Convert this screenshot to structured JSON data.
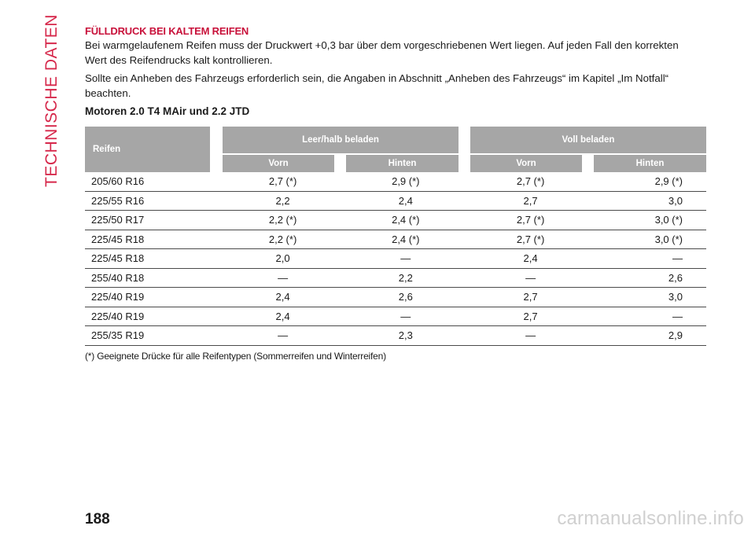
{
  "side_label": "TECHNISCHE DATEN",
  "heading": "FÜLLDRUCK BEI KALTEM REIFEN",
  "paragraph1": "Bei warmgelaufenem Reifen muss der Druckwert +0,3 bar über dem vorgeschriebenen Wert liegen. Auf jeden Fall den korrekten Wert des Reifendrucks kalt kontrollieren.",
  "paragraph2": "Sollte ein Anheben des Fahrzeugs erforderlich sein, die Angaben in Abschnitt „Anheben des Fahrzeugs“ im Kapitel „Im Notfall“ beachten.",
  "subheading": "Motoren 2.0 T4 MAir und 2.2 JTD",
  "table": {
    "col_reifen": "Reifen",
    "group1": "Leer/halb beladen",
    "group2": "Voll beladen",
    "vorn1": "Vorn",
    "hinten1": "Hinten",
    "vorn2": "Vorn",
    "hinten2": "Hinten",
    "rows": [
      [
        "205/60 R16",
        "2,7 (*)",
        "2,9 (*)",
        "2,7 (*)",
        "2,9 (*)"
      ],
      [
        "225/55 R16",
        "2,2",
        "2,4",
        "2,7",
        "3,0"
      ],
      [
        "225/50 R17",
        "2,2 (*)",
        "2,4 (*)",
        "2,7 (*)",
        "3,0 (*)"
      ],
      [
        "225/45 R18",
        "2,2 (*)",
        "2,4 (*)",
        "2,7 (*)",
        "3,0 (*)"
      ],
      [
        "225/45 R18",
        "2,0",
        "—",
        "2,4",
        "—"
      ],
      [
        "255/40 R18",
        "—",
        "2,2",
        "—",
        "2,6"
      ],
      [
        "225/40 R19",
        "2,4",
        "2,6",
        "2,7",
        "3,0"
      ],
      [
        "225/40 R19",
        "2,4",
        "—",
        "2,7",
        "—"
      ],
      [
        "255/35 R19",
        "—",
        "2,3",
        "—",
        "2,9"
      ]
    ]
  },
  "footnote": "(*) Geeignete Drücke für alle Reifentypen (Sommerreifen und Winterreifen)",
  "page_number": "188",
  "watermark": "carmanualsonline.info"
}
